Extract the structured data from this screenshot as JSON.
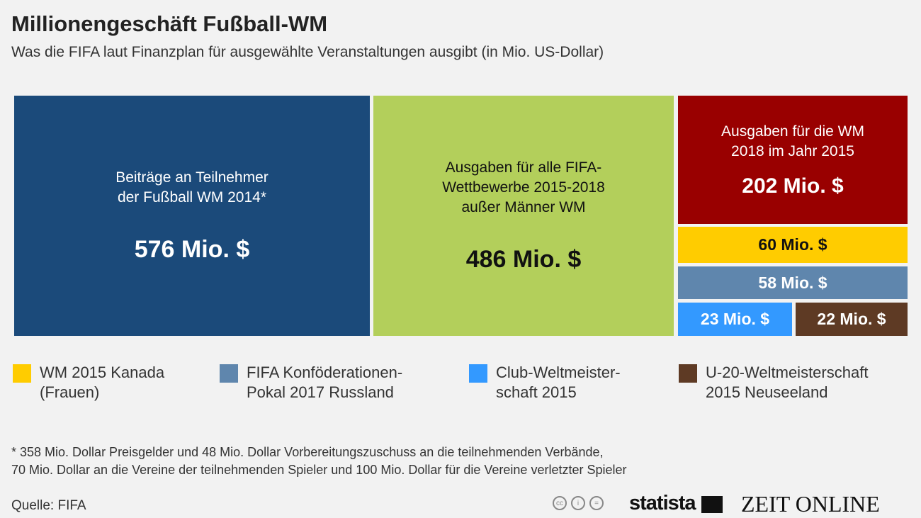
{
  "title": "Millionengeschäft Fußball-WM",
  "subtitle": "Was die FIFA laut Finanzplan für ausgewählte Veranstaltungen ausgibt (in Mio. US-Dollar)",
  "chart_data": {
    "type": "treemap",
    "unit": "Mio. US-Dollar",
    "items": [
      {
        "label": "Beiträge an Teilnehmer\nder Fußball WM 2014*",
        "value": 576,
        "value_label": "576 Mio. $",
        "color": "#1b4a7a"
      },
      {
        "label": "Ausgaben für alle FIFA-\nWettbewerbe 2015-2018\naußer Männer WM",
        "value": 486,
        "value_label": "486 Mio. $",
        "color": "#b3cf5b"
      },
      {
        "label": "Ausgaben für die WM\n2018 im Jahr 2015",
        "value": 202,
        "value_label": "202 Mio. $",
        "color": "#990000"
      },
      {
        "label": "WM 2015 Kanada\n(Frauen)",
        "value": 60,
        "value_label": "60 Mio. $",
        "color": "#ffcc00"
      },
      {
        "label": "FIFA Konföderationen-\nPokal 2017 Russland",
        "value": 58,
        "value_label": "58 Mio. $",
        "color": "#5f86ad"
      },
      {
        "label": "Club-Weltmeister-\nschaft 2015",
        "value": 23,
        "value_label": "23 Mio. $",
        "color": "#3399ff"
      },
      {
        "label": "U-20-Weltmeisterschaft\n2015 Neuseeland",
        "value": 22,
        "value_label": "22 Mio. $",
        "color": "#5e3a24"
      }
    ]
  },
  "footnote": "* 358 Mio. Dollar Preisgelder und 48 Mio. Dollar Vorbereitungszuschuss an die teilnehmenden Verbände,\n   70 Mio. Dollar an die Vereine der teilnehmenden Spieler und 100 Mio. Dollar für die Vereine verletzter Spieler",
  "source": "Quelle: FIFA",
  "logos": {
    "statista": "statista",
    "zeit": "ZEIT ONLINE"
  }
}
